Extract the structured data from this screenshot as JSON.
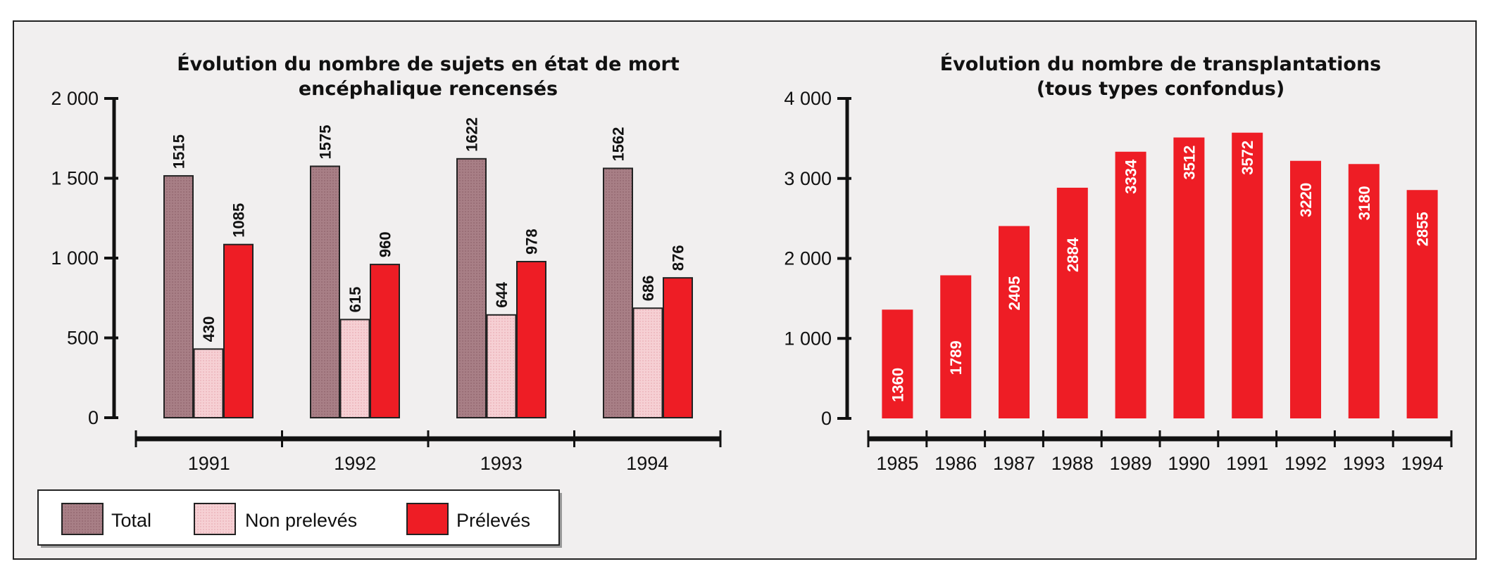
{
  "colors": {
    "total": "#a87f86",
    "non_preleves": "#f6d0d4",
    "preleves": "#ee1d25",
    "axis": "#111111",
    "background": "#f1efef"
  },
  "chart_data": [
    {
      "type": "bar",
      "title": [
        "Évolution du nombre de sujets en état de mort",
        "encéphalique rencensés"
      ],
      "categories": [
        "1991",
        "1992",
        "1993",
        "1994"
      ],
      "yticks": [
        "0",
        "500",
        "1 000",
        "1 500",
        "2 000"
      ],
      "ylim": [
        0,
        2000
      ],
      "series": [
        {
          "name": "Total",
          "values": [
            1515,
            1575,
            1622,
            1562
          ]
        },
        {
          "name": "Non prelevés",
          "values": [
            430,
            615,
            644,
            686
          ]
        },
        {
          "name": "Prélevés",
          "values": [
            1085,
            960,
            978,
            876
          ]
        }
      ],
      "legend_position": "bottom-left"
    },
    {
      "type": "bar",
      "title": [
        "Évolution du nombre de transplantations",
        "(tous types confondus)"
      ],
      "categories": [
        "1985",
        "1986",
        "1987",
        "1988",
        "1989",
        "1990",
        "1991",
        "1992",
        "1993",
        "1994"
      ],
      "yticks": [
        "0",
        "1 000",
        "2 000",
        "3 000",
        "4 000"
      ],
      "ylim": [
        0,
        4000
      ],
      "series": [
        {
          "name": "Transplantations",
          "values": [
            1360,
            1789,
            2405,
            2884,
            3334,
            3512,
            3572,
            3220,
            3180,
            2855
          ]
        }
      ]
    }
  ]
}
